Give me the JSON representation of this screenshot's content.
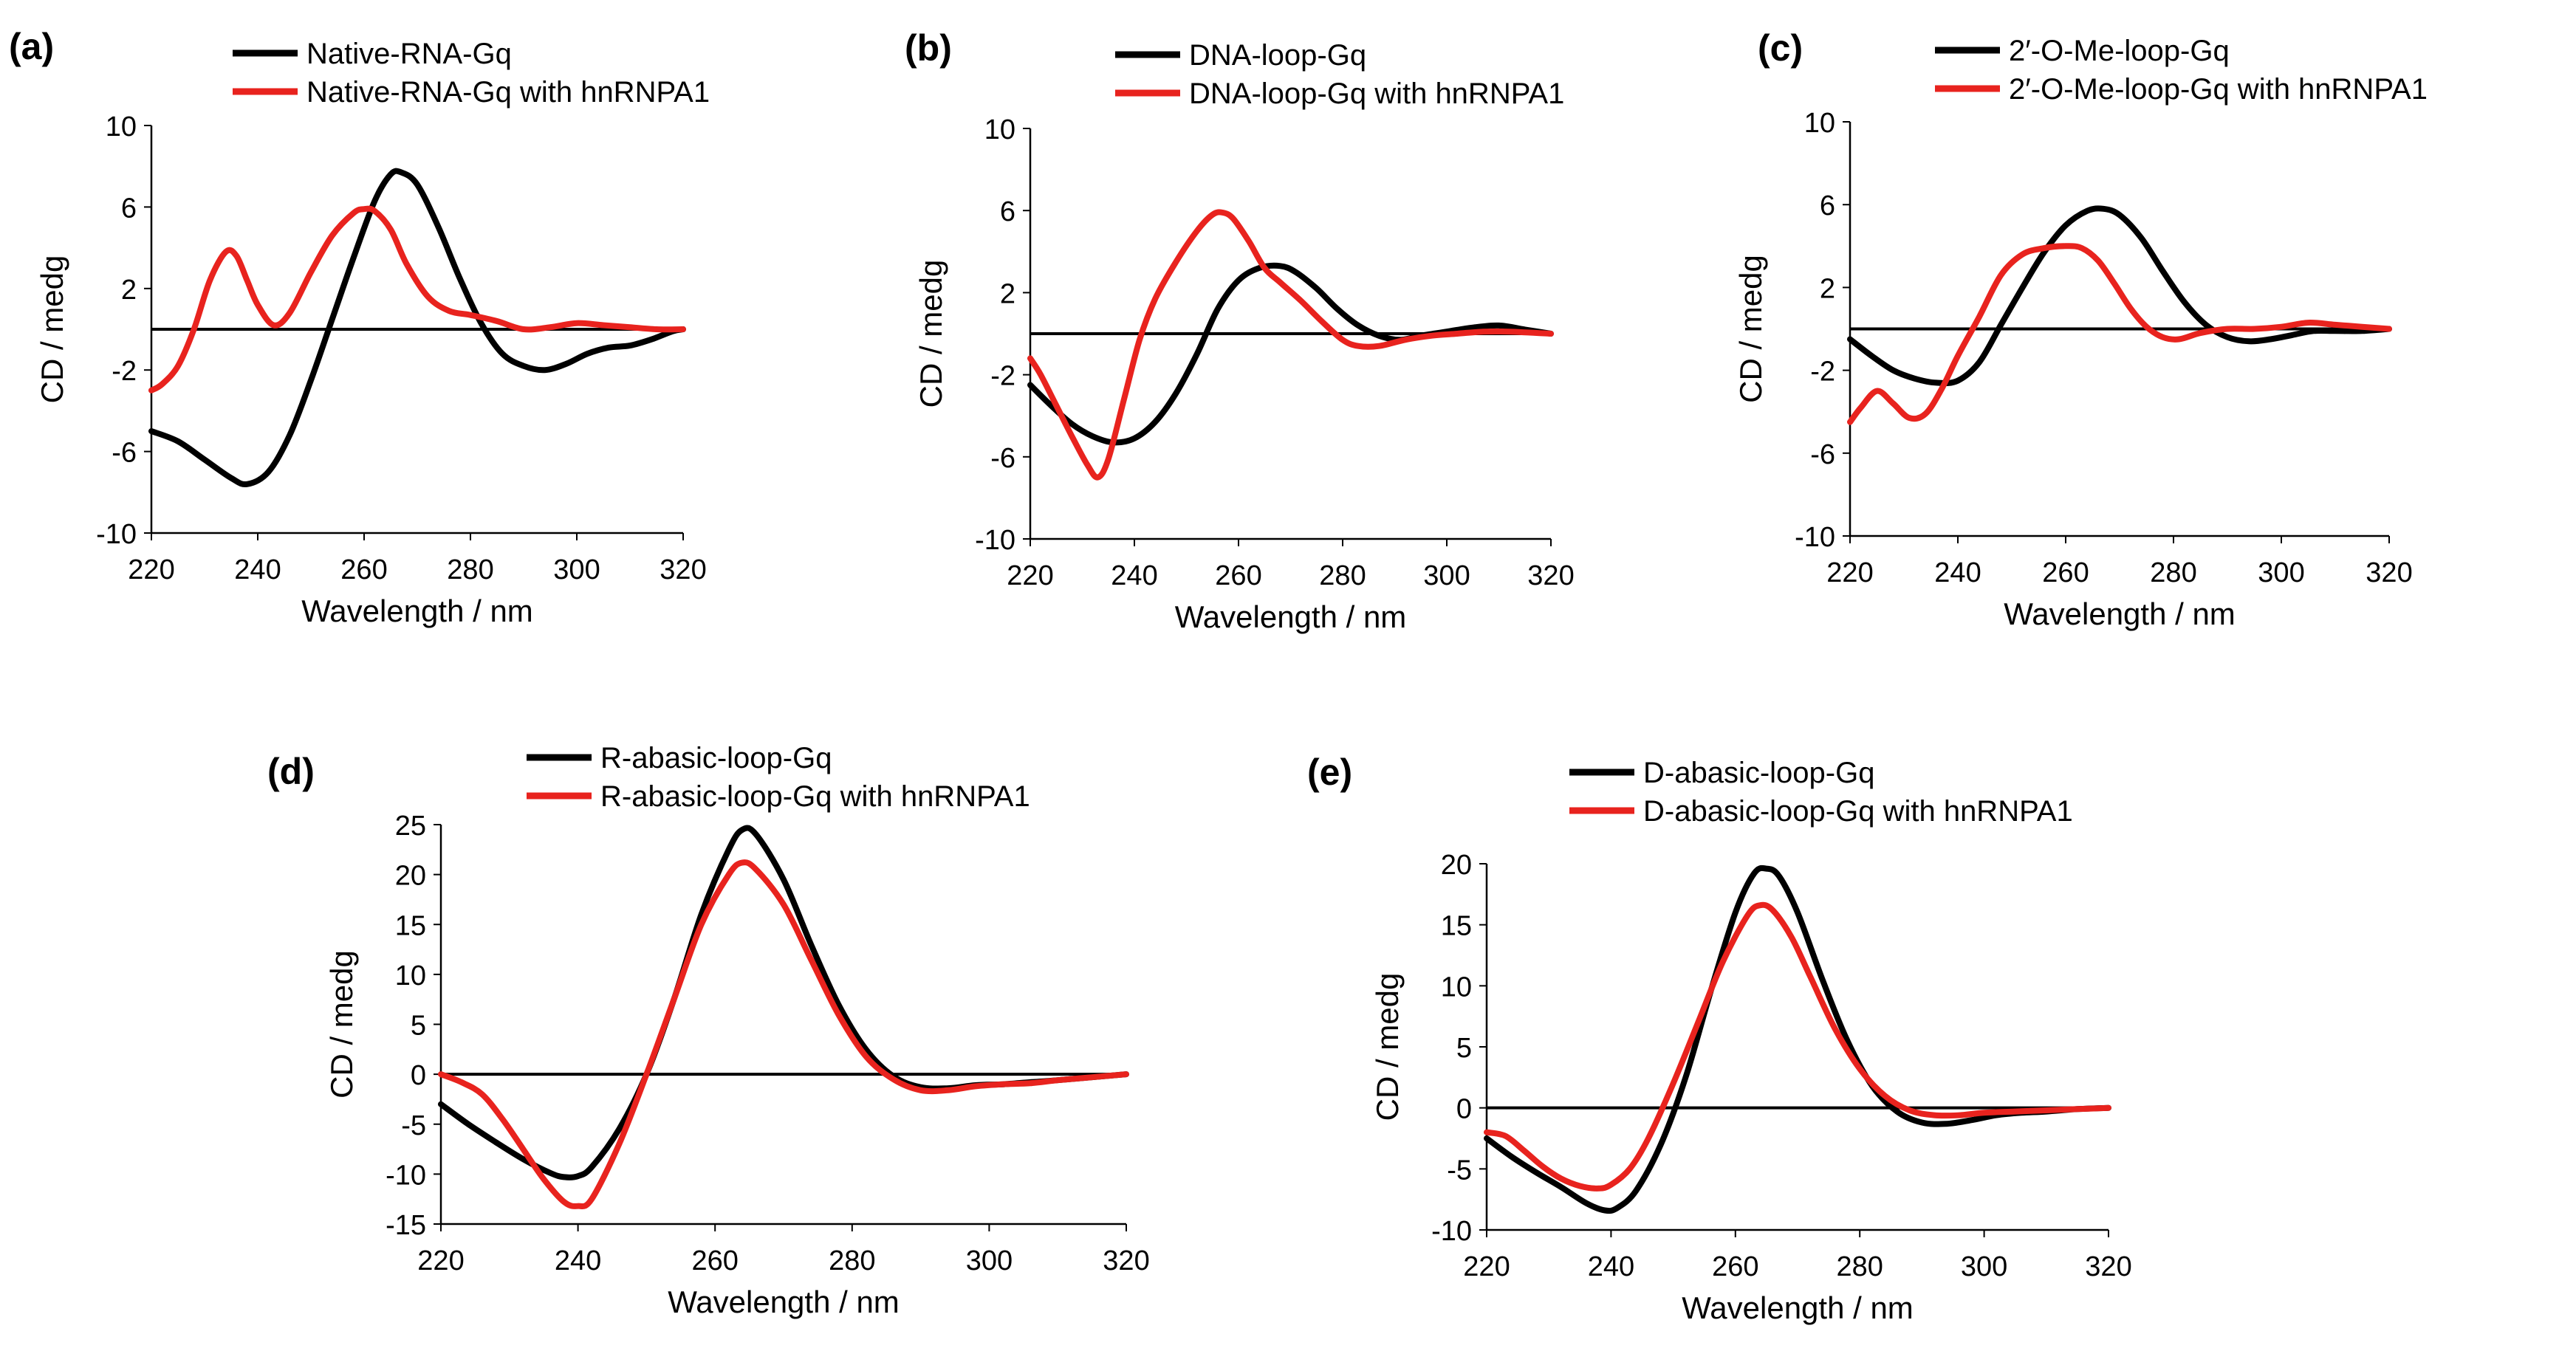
{
  "colors": {
    "black_series": "#000000",
    "red_series": "#e8231e",
    "axis": "#000000",
    "background": "#ffffff"
  },
  "chart_data": [
    {
      "id": "a",
      "type": "line",
      "panel_label": "(a)",
      "xlabel": "Wavelength / nm",
      "ylabel": "CD / medg",
      "xlim": [
        220,
        320
      ],
      "ylim": [
        -10,
        10
      ],
      "xticks": [
        220,
        240,
        260,
        280,
        300,
        320
      ],
      "yticks": [
        10,
        6,
        2,
        -2,
        -6,
        -10
      ],
      "legend": "top",
      "series": [
        {
          "name": "Native-RNA-Gq",
          "color": "#000000",
          "x": [
            220,
            225,
            230,
            235,
            238,
            242,
            246,
            250,
            254,
            258,
            262,
            265,
            267,
            270,
            274,
            278,
            282,
            286,
            290,
            294,
            298,
            302,
            306,
            310,
            314,
            318,
            320
          ],
          "y": [
            -5.0,
            -5.5,
            -6.4,
            -7.3,
            -7.6,
            -7.0,
            -5.2,
            -2.5,
            0.5,
            3.5,
            6.3,
            7.6,
            7.7,
            7.1,
            5.0,
            2.5,
            0.3,
            -1.2,
            -1.8,
            -2.0,
            -1.7,
            -1.2,
            -0.9,
            -0.8,
            -0.5,
            -0.1,
            0.0
          ]
        },
        {
          "name": "Native-RNA-Gq with hnRNPA1",
          "color": "#e8231e",
          "x": [
            220,
            222,
            225,
            228,
            231,
            234,
            236,
            238,
            240,
            243,
            246,
            250,
            254,
            258,
            260,
            262,
            265,
            268,
            272,
            276,
            280,
            285,
            290,
            295,
            300,
            305,
            310,
            315,
            320
          ],
          "y": [
            -3.0,
            -2.7,
            -1.8,
            0.0,
            2.4,
            3.8,
            3.6,
            2.4,
            1.2,
            0.2,
            0.8,
            2.8,
            4.6,
            5.7,
            5.9,
            5.8,
            4.9,
            3.2,
            1.6,
            0.9,
            0.7,
            0.4,
            0.0,
            0.1,
            0.3,
            0.2,
            0.1,
            0.0,
            0.0
          ]
        }
      ]
    },
    {
      "id": "b",
      "type": "line",
      "panel_label": "(b)",
      "xlabel": "Wavelength / nm",
      "ylabel": "CD / medg",
      "xlim": [
        220,
        320
      ],
      "ylim": [
        -10,
        10
      ],
      "xticks": [
        220,
        240,
        260,
        280,
        300,
        320
      ],
      "yticks": [
        10,
        6,
        2,
        -2,
        -6,
        -10
      ],
      "legend": "top",
      "series": [
        {
          "name": "DNA-loop-Gq",
          "color": "#000000",
          "x": [
            220,
            224,
            228,
            232,
            236,
            240,
            244,
            248,
            252,
            256,
            260,
            264,
            268,
            271,
            275,
            279,
            283,
            287,
            291,
            295,
            300,
            305,
            310,
            315,
            320
          ],
          "y": [
            -2.5,
            -3.5,
            -4.4,
            -5.0,
            -5.3,
            -5.1,
            -4.3,
            -2.9,
            -1.0,
            1.2,
            2.6,
            3.2,
            3.3,
            3.0,
            2.2,
            1.2,
            0.4,
            -0.1,
            -0.3,
            -0.1,
            0.1,
            0.3,
            0.4,
            0.2,
            0.0
          ]
        },
        {
          "name": "DNA-loop-Gq with hnRNPA1",
          "color": "#e8231e",
          "x": [
            220,
            222,
            225,
            228,
            231,
            233,
            235,
            238,
            241,
            244,
            248,
            252,
            255,
            257,
            259,
            262,
            265,
            268,
            272,
            276,
            280,
            283,
            287,
            292,
            297,
            302,
            307,
            312,
            320
          ],
          "y": [
            -1.2,
            -2.0,
            -3.5,
            -5.0,
            -6.4,
            -7.0,
            -6.1,
            -3.2,
            -0.3,
            1.7,
            3.5,
            5.0,
            5.8,
            5.9,
            5.6,
            4.5,
            3.2,
            2.5,
            1.6,
            0.6,
            -0.3,
            -0.6,
            -0.6,
            -0.3,
            -0.1,
            0.0,
            0.1,
            0.1,
            0.0
          ]
        }
      ]
    },
    {
      "id": "c",
      "type": "line",
      "panel_label": "(c)",
      "xlabel": "Wavelength / nm",
      "ylabel": "CD / medg",
      "xlim": [
        220,
        320
      ],
      "ylim": [
        -10,
        10
      ],
      "xticks": [
        220,
        240,
        260,
        280,
        300,
        320
      ],
      "yticks": [
        10,
        6,
        2,
        -2,
        -6,
        -10
      ],
      "legend": "top",
      "series": [
        {
          "name": "2′-O-Me-loop-Gq",
          "color": "#000000",
          "x": [
            220,
            224,
            228,
            232,
            236,
            240,
            244,
            248,
            252,
            256,
            260,
            264,
            267,
            270,
            274,
            278,
            282,
            286,
            290,
            294,
            298,
            302,
            306,
            310,
            315,
            320
          ],
          "y": [
            -0.5,
            -1.3,
            -2.0,
            -2.4,
            -2.6,
            -2.5,
            -1.6,
            0.2,
            2.0,
            3.7,
            5.0,
            5.7,
            5.8,
            5.5,
            4.4,
            2.8,
            1.3,
            0.2,
            -0.4,
            -0.6,
            -0.5,
            -0.3,
            -0.1,
            -0.1,
            -0.1,
            0.0
          ]
        },
        {
          "name": "2′-O-Me-loop-Gq with hnRNPA1",
          "color": "#e8231e",
          "x": [
            220,
            222,
            225,
            228,
            231,
            234,
            237,
            240,
            244,
            248,
            252,
            256,
            260,
            263,
            266,
            269,
            272,
            275,
            278,
            281,
            285,
            290,
            295,
            300,
            305,
            310,
            315,
            320
          ],
          "y": [
            -4.5,
            -3.8,
            -3.0,
            -3.6,
            -4.3,
            -4.1,
            -2.9,
            -1.3,
            0.6,
            2.6,
            3.6,
            3.9,
            4.0,
            3.9,
            3.3,
            2.2,
            1.0,
            0.1,
            -0.4,
            -0.5,
            -0.2,
            0.0,
            0.0,
            0.1,
            0.3,
            0.2,
            0.1,
            0.0
          ]
        }
      ]
    },
    {
      "id": "d",
      "type": "line",
      "panel_label": "(d)",
      "xlabel": "Wavelength / nm",
      "ylabel": "CD / medg",
      "xlim": [
        220,
        320
      ],
      "ylim": [
        -15,
        25
      ],
      "xticks": [
        220,
        240,
        260,
        280,
        300,
        320
      ],
      "yticks": [
        25,
        20,
        15,
        10,
        5,
        0,
        -5,
        -10,
        -15
      ],
      "legend": "top",
      "series": [
        {
          "name": "R-abasic-loop-Gq",
          "color": "#000000",
          "x": [
            220,
            224,
            228,
            232,
            236,
            238,
            240,
            242,
            246,
            250,
            254,
            258,
            262,
            264,
            266,
            270,
            274,
            278,
            282,
            286,
            290,
            294,
            298,
            302,
            306,
            310,
            315,
            320
          ],
          "y": [
            -3.0,
            -5.0,
            -6.8,
            -8.5,
            -9.9,
            -10.3,
            -10.2,
            -9.3,
            -5.5,
            0.0,
            7.5,
            16.0,
            22.5,
            24.5,
            24.0,
            19.5,
            13.0,
            7.0,
            2.5,
            -0.2,
            -1.3,
            -1.4,
            -1.1,
            -1.0,
            -0.8,
            -0.6,
            -0.3,
            0.0
          ]
        },
        {
          "name": "R-abasic-loop-Gq with hnRNPA1",
          "color": "#e8231e",
          "x": [
            220,
            223,
            226,
            229,
            232,
            235,
            238,
            240,
            242,
            246,
            250,
            254,
            258,
            262,
            264,
            266,
            270,
            274,
            278,
            282,
            286,
            290,
            294,
            298,
            302,
            306,
            310,
            315,
            320
          ],
          "y": [
            0.0,
            -0.8,
            -2.0,
            -4.5,
            -7.5,
            -10.5,
            -12.8,
            -13.2,
            -12.5,
            -7.0,
            0.0,
            7.5,
            15.0,
            20.0,
            21.2,
            20.5,
            17.0,
            11.5,
            6.0,
            1.8,
            -0.5,
            -1.6,
            -1.6,
            -1.2,
            -1.0,
            -0.9,
            -0.6,
            -0.3,
            0.0
          ]
        }
      ]
    },
    {
      "id": "e",
      "type": "line",
      "panel_label": "(e)",
      "xlabel": "Wavelength / nm",
      "ylabel": "CD / medg",
      "xlim": [
        220,
        320
      ],
      "ylim": [
        -10,
        20
      ],
      "xticks": [
        220,
        240,
        260,
        280,
        300,
        320
      ],
      "yticks": [
        20,
        15,
        10,
        5,
        0,
        -5,
        -10
      ],
      "legend": "top",
      "series": [
        {
          "name": "D-abasic-loop-Gq",
          "color": "#000000",
          "x": [
            220,
            224,
            228,
            232,
            236,
            239,
            241,
            244,
            248,
            252,
            256,
            260,
            263,
            265,
            267,
            270,
            274,
            278,
            282,
            286,
            290,
            294,
            298,
            302,
            306,
            310,
            315,
            320
          ],
          "y": [
            -2.5,
            -4.0,
            -5.3,
            -6.5,
            -7.8,
            -8.4,
            -8.2,
            -6.8,
            -3.0,
            2.5,
            9.5,
            16.0,
            19.2,
            19.6,
            19.0,
            16.0,
            10.5,
            5.5,
            1.8,
            -0.3,
            -1.2,
            -1.3,
            -1.0,
            -0.6,
            -0.4,
            -0.3,
            -0.1,
            0.0
          ]
        },
        {
          "name": "D-abasic-loop-Gq with hnRNPA1",
          "color": "#e8231e",
          "x": [
            220,
            223,
            226,
            229,
            232,
            235,
            238,
            240,
            243,
            246,
            250,
            254,
            258,
            262,
            264,
            266,
            269,
            272,
            276,
            280,
            284,
            288,
            292,
            296,
            300,
            305,
            310,
            315,
            320
          ],
          "y": [
            -2.0,
            -2.3,
            -3.5,
            -4.8,
            -5.8,
            -6.4,
            -6.6,
            -6.3,
            -5.0,
            -2.5,
            2.0,
            7.0,
            12.0,
            15.8,
            16.6,
            16.2,
            14.0,
            10.8,
            6.5,
            3.2,
            1.0,
            -0.2,
            -0.6,
            -0.6,
            -0.4,
            -0.3,
            -0.2,
            -0.1,
            0.0
          ]
        }
      ]
    }
  ]
}
